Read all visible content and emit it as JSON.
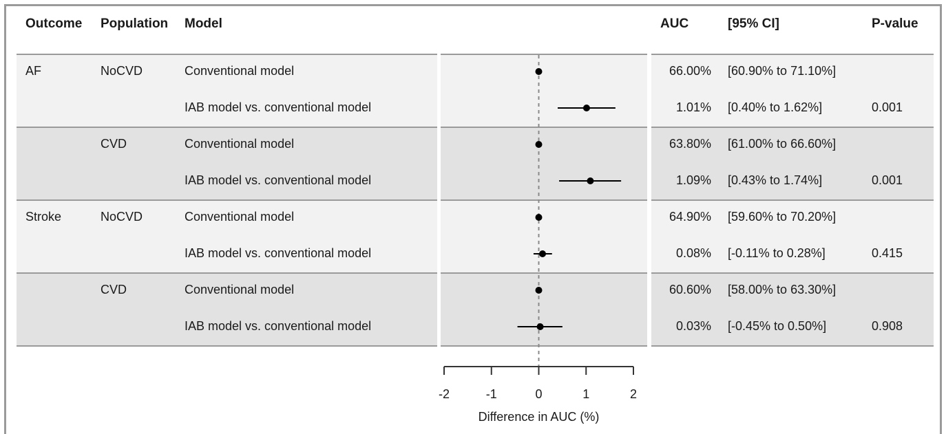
{
  "headers": {
    "outcome": "Outcome",
    "population": "Population",
    "model": "Model",
    "auc": "AUC",
    "ci": "[95% CI]",
    "p": "P-value"
  },
  "rows": [
    {
      "outcome": "AF",
      "population": "NoCVD",
      "model": "Conventional model",
      "auc": "66.00%",
      "ci": "[60.90% to 71.10%]",
      "p": ""
    },
    {
      "outcome": "",
      "population": "",
      "model": "IAB model vs. conventional model",
      "auc": "1.01%",
      "ci": "[0.40% to 1.62%]",
      "p": "0.001"
    },
    {
      "outcome": "",
      "population": "CVD",
      "model": "Conventional model",
      "auc": "63.80%",
      "ci": "[61.00% to 66.60%]",
      "p": ""
    },
    {
      "outcome": "",
      "population": "",
      "model": "IAB model vs. conventional model",
      "auc": "1.09%",
      "ci": "[0.43% to 1.74%]",
      "p": "0.001"
    },
    {
      "outcome": "Stroke",
      "population": "NoCVD",
      "model": "Conventional model",
      "auc": "64.90%",
      "ci": "[59.60% to 70.20%]",
      "p": ""
    },
    {
      "outcome": "",
      "population": "",
      "model": "IAB model vs. conventional model",
      "auc": "0.08%",
      "ci": "[-0.11% to 0.28%]",
      "p": "0.415"
    },
    {
      "outcome": "",
      "population": "CVD",
      "model": "Conventional model",
      "auc": "60.60%",
      "ci": "[58.00% to 63.30%]",
      "p": ""
    },
    {
      "outcome": "",
      "population": "",
      "model": "IAB model vs. conventional model",
      "auc": "0.03%",
      "ci": "[-0.45% to 0.50%]",
      "p": "0.908"
    }
  ],
  "chart_data": {
    "type": "scatter",
    "subtype": "forest",
    "xlabel": "Difference in AUC (%)",
    "xlim": [
      -2,
      2
    ],
    "xticks": [
      -2,
      -1,
      0,
      1,
      2
    ],
    "reference_line": 0,
    "points": [
      {
        "estimate": 0,
        "lower": null,
        "upper": null
      },
      {
        "estimate": 1.01,
        "lower": 0.4,
        "upper": 1.62
      },
      {
        "estimate": 0,
        "lower": null,
        "upper": null
      },
      {
        "estimate": 1.09,
        "lower": 0.43,
        "upper": 1.74
      },
      {
        "estimate": 0,
        "lower": null,
        "upper": null
      },
      {
        "estimate": 0.08,
        "lower": -0.11,
        "upper": 0.28
      },
      {
        "estimate": 0,
        "lower": null,
        "upper": null
      },
      {
        "estimate": 0.03,
        "lower": -0.45,
        "upper": 0.5
      }
    ]
  },
  "colors": {
    "band_light": "#f2f2f2",
    "band_dark": "#e2e2e2",
    "rule": "#9a9a9a",
    "point": "#000000"
  }
}
